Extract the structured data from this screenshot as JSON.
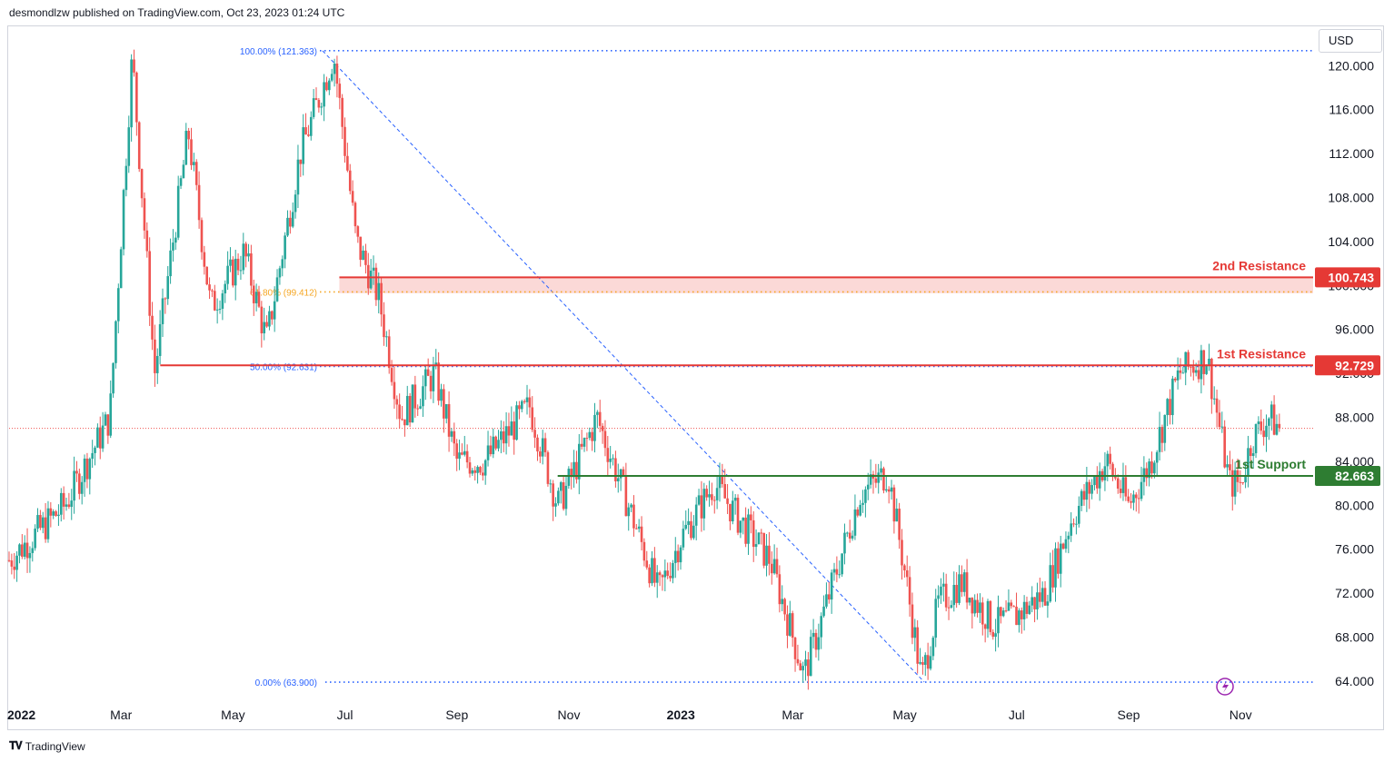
{
  "header": {
    "publish_text": "desmondlzw published on TradingView.com, Oct 23, 2023 01:24 UTC"
  },
  "currency_button": {
    "label": "USD"
  },
  "footer": {
    "brand": "TradingView",
    "logo_icon": "tradingview-logo-icon"
  },
  "colors": {
    "up": "#26a69a",
    "down": "#ef5350",
    "resistance": "#e53935",
    "support": "#2e7d32",
    "fib_blue": "#2962ff",
    "fib_orange": "#f5a623",
    "last_price": "#ef5350",
    "zone_fill": "#fbd9d7",
    "replay_icon": "#9c27b0"
  },
  "chart_data": {
    "type": "candlestick",
    "ylim": [
      62.5,
      123.5
    ],
    "y_ticks": [
      "120.000",
      "116.000",
      "112.000",
      "108.000",
      "104.000",
      "100.000",
      "96.000",
      "92.000",
      "88.000",
      "84.000",
      "80.000",
      "76.000",
      "72.000",
      "68.000",
      "64.000"
    ],
    "y_tick_values": [
      120,
      116,
      112,
      108,
      104,
      100,
      96,
      92,
      88,
      84,
      80,
      76,
      72,
      68,
      64
    ],
    "x_ticks": [
      {
        "label": "2022",
        "month": 0,
        "bold": true
      },
      {
        "label": "Mar",
        "month": 2
      },
      {
        "label": "May",
        "month": 4
      },
      {
        "label": "Jul",
        "month": 6
      },
      {
        "label": "Sep",
        "month": 8
      },
      {
        "label": "Nov",
        "month": 10
      },
      {
        "label": "2023",
        "month": 12,
        "bold": true
      },
      {
        "label": "Mar",
        "month": 14
      },
      {
        "label": "May",
        "month": 16
      },
      {
        "label": "Jul",
        "month": 18
      },
      {
        "label": "Sep",
        "month": 20
      },
      {
        "label": "Nov",
        "month": 22
      }
    ],
    "price_path": [
      [
        0,
        75
      ],
      [
        1,
        80
      ],
      [
        1.8,
        88
      ],
      [
        2.2,
        121
      ],
      [
        2.6,
        92
      ],
      [
        3.2,
        114
      ],
      [
        3.6,
        98
      ],
      [
        4.2,
        103
      ],
      [
        4.6,
        95
      ],
      [
        5.2,
        112
      ],
      [
        5.8,
        121
      ],
      [
        6.2,
        104
      ],
      [
        6.6,
        99
      ],
      [
        7,
        88
      ],
      [
        7.6,
        92
      ],
      [
        8,
        84
      ],
      [
        8.5,
        84
      ],
      [
        9.3,
        89
      ],
      [
        9.8,
        80
      ],
      [
        10,
        82
      ],
      [
        10.5,
        88
      ],
      [
        11.2,
        78
      ],
      [
        11.6,
        72
      ],
      [
        12,
        77
      ],
      [
        12.6,
        82
      ],
      [
        13,
        79
      ],
      [
        13.6,
        75
      ],
      [
        14.2,
        64.5
      ],
      [
        14.6,
        71
      ],
      [
        14.9,
        76
      ],
      [
        15.2,
        81
      ],
      [
        15.7,
        83
      ],
      [
        16,
        74
      ],
      [
        16.3,
        64
      ],
      [
        16.6,
        71
      ],
      [
        17,
        73
      ],
      [
        17.6,
        69
      ],
      [
        18,
        70
      ],
      [
        18.5,
        72
      ],
      [
        19,
        79
      ],
      [
        19.6,
        84
      ],
      [
        20,
        80
      ],
      [
        20.4,
        84
      ],
      [
        20.9,
        92
      ],
      [
        21.4,
        93.5
      ],
      [
        21.8,
        82
      ],
      [
        22,
        82
      ],
      [
        22.2,
        86
      ],
      [
        22.5,
        88
      ],
      [
        22.7,
        87
      ]
    ],
    "fib_levels": [
      {
        "label": "100.00% (121.363)",
        "value": 121.363,
        "color": "blue"
      },
      {
        "label": "61.80% (99.412)",
        "value": 99.412,
        "color": "orange"
      },
      {
        "label": "50.00% (92.631)",
        "value": 92.631,
        "color": "blue"
      },
      {
        "label": "0.00% (63.900)",
        "value": 63.9,
        "color": "blue"
      }
    ],
    "horizontal_levels": [
      {
        "name": "2nd Resistance",
        "value": 100.743,
        "price_label": "100.743",
        "kind": "resistance",
        "from_month": 5.9
      },
      {
        "name": "1st Resistance",
        "value": 92.729,
        "price_label": "92.729",
        "kind": "resistance",
        "from_month": 2.7
      },
      {
        "name": "1st Support",
        "value": 82.663,
        "price_label": "82.663",
        "kind": "support",
        "from_month": 9.8
      }
    ],
    "resistance_zone": {
      "from": 99.3,
      "to": 100.743,
      "from_month": 5.9
    },
    "last_price": 87.0
  }
}
